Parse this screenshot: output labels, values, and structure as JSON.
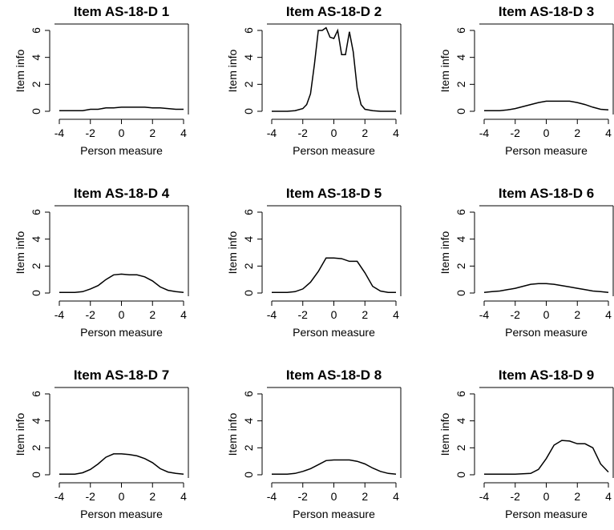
{
  "chart_data": [
    {
      "type": "line",
      "title": "Item AS-18-D 1",
      "xlabel": "Person measure",
      "ylabel": "Item info",
      "xlim": [
        -4,
        4
      ],
      "ylim": [
        0,
        6
      ],
      "xticks": [
        "-4",
        "-2",
        "0",
        "2",
        "4"
      ],
      "yticks": [
        "0",
        "2",
        "4",
        "6"
      ],
      "x": [
        -4,
        -3,
        -2.5,
        -2,
        -1.5,
        -1,
        -0.5,
        0,
        0.5,
        1,
        1.5,
        2,
        2.5,
        3,
        3.5,
        4
      ],
      "y": [
        0.05,
        0.05,
        0.05,
        0.15,
        0.15,
        0.25,
        0.25,
        0.3,
        0.3,
        0.3,
        0.3,
        0.25,
        0.25,
        0.2,
        0.15,
        0.15
      ]
    },
    {
      "type": "line",
      "title": "Item AS-18-D 2",
      "xlabel": "Person measure",
      "ylabel": "Item info",
      "xlim": [
        -4,
        4
      ],
      "ylim": [
        0,
        6
      ],
      "xticks": [
        "-4",
        "-2",
        "0",
        "2",
        "4"
      ],
      "yticks": [
        "0",
        "2",
        "4",
        "6"
      ],
      "x": [
        -4,
        -3,
        -2.5,
        -2,
        -1.75,
        -1.5,
        -1.25,
        -1,
        -0.75,
        -0.5,
        -0.25,
        0,
        0.25,
        0.5,
        0.75,
        1,
        1.25,
        1.5,
        1.75,
        2,
        2.5,
        3,
        4
      ],
      "y": [
        0,
        0,
        0.05,
        0.2,
        0.5,
        1.3,
        3.5,
        6.0,
        6.0,
        6.2,
        5.5,
        5.4,
        6.0,
        4.2,
        4.2,
        5.9,
        4.4,
        1.7,
        0.5,
        0.15,
        0.05,
        0,
        0
      ]
    },
    {
      "type": "line",
      "title": "Item AS-18-D 3",
      "xlabel": "Person measure",
      "ylabel": "Item info",
      "xlim": [
        -4,
        4
      ],
      "ylim": [
        0,
        6
      ],
      "xticks": [
        "-4",
        "-2",
        "0",
        "2",
        "4"
      ],
      "yticks": [
        "0",
        "2",
        "4",
        "6"
      ],
      "x": [
        -4,
        -3,
        -2.5,
        -2,
        -1.5,
        -1,
        -0.5,
        0,
        0.5,
        1,
        1.5,
        2,
        2.5,
        3,
        3.5,
        4
      ],
      "y": [
        0.05,
        0.05,
        0.1,
        0.2,
        0.35,
        0.5,
        0.65,
        0.75,
        0.75,
        0.75,
        0.75,
        0.65,
        0.5,
        0.3,
        0.15,
        0.1
      ]
    },
    {
      "type": "line",
      "title": "Item AS-18-D 4",
      "xlabel": "Person measure",
      "ylabel": "Item info",
      "xlim": [
        -4,
        4
      ],
      "ylim": [
        0,
        6
      ],
      "xticks": [
        "-4",
        "-2",
        "0",
        "2",
        "4"
      ],
      "yticks": [
        "0",
        "2",
        "4",
        "6"
      ],
      "x": [
        -4,
        -3,
        -2.5,
        -2,
        -1.5,
        -1,
        -0.5,
        0,
        0.5,
        1,
        1.5,
        2,
        2.5,
        3,
        3.5,
        4
      ],
      "y": [
        0.05,
        0.05,
        0.1,
        0.3,
        0.55,
        1.0,
        1.35,
        1.4,
        1.35,
        1.35,
        1.2,
        0.9,
        0.45,
        0.2,
        0.1,
        0.05
      ]
    },
    {
      "type": "line",
      "title": "Item AS-18-D 5",
      "xlabel": "Person measure",
      "ylabel": "Item info",
      "xlim": [
        -4,
        4
      ],
      "ylim": [
        0,
        6
      ],
      "xticks": [
        "-4",
        "-2",
        "0",
        "2",
        "4"
      ],
      "yticks": [
        "0",
        "2",
        "4",
        "6"
      ],
      "x": [
        -4,
        -3,
        -2.5,
        -2,
        -1.5,
        -1,
        -0.5,
        0,
        0.5,
        1,
        1.5,
        2,
        2.5,
        3,
        3.5,
        4
      ],
      "y": [
        0.05,
        0.05,
        0.1,
        0.3,
        0.8,
        1.6,
        2.6,
        2.6,
        2.55,
        2.35,
        2.35,
        1.5,
        0.5,
        0.15,
        0.05,
        0.05
      ]
    },
    {
      "type": "line",
      "title": "Item AS-18-D 6",
      "xlabel": "Person measure",
      "ylabel": "Item info",
      "xlim": [
        -4,
        4
      ],
      "ylim": [
        0,
        6
      ],
      "xticks": [
        "-4",
        "-2",
        "0",
        "2",
        "4"
      ],
      "yticks": [
        "0",
        "2",
        "4",
        "6"
      ],
      "x": [
        -4,
        -3.5,
        -3,
        -2.5,
        -2,
        -1.5,
        -1,
        -0.5,
        0,
        0.5,
        1,
        1.5,
        2,
        2.5,
        3,
        3.5,
        4
      ],
      "y": [
        0.05,
        0.1,
        0.15,
        0.25,
        0.35,
        0.5,
        0.65,
        0.7,
        0.7,
        0.65,
        0.55,
        0.45,
        0.35,
        0.25,
        0.15,
        0.1,
        0.05
      ]
    },
    {
      "type": "line",
      "title": "Item AS-18-D 7",
      "xlabel": "Person measure",
      "ylabel": "Item info",
      "xlim": [
        -4,
        4
      ],
      "ylim": [
        0,
        6
      ],
      "xticks": [
        "-4",
        "-2",
        "0",
        "2",
        "4"
      ],
      "yticks": [
        "0",
        "2",
        "4",
        "6"
      ],
      "x": [
        -4,
        -3,
        -2.5,
        -2,
        -1.5,
        -1,
        -0.5,
        0,
        0.5,
        1,
        1.5,
        2,
        2.5,
        3,
        3.5,
        4
      ],
      "y": [
        0.05,
        0.05,
        0.15,
        0.4,
        0.8,
        1.3,
        1.55,
        1.55,
        1.5,
        1.4,
        1.2,
        0.9,
        0.45,
        0.2,
        0.1,
        0.05
      ]
    },
    {
      "type": "line",
      "title": "Item AS-18-D 8",
      "xlabel": "Person measure",
      "ylabel": "Item info",
      "xlim": [
        -4,
        4
      ],
      "ylim": [
        0,
        6
      ],
      "xticks": [
        "-4",
        "-2",
        "0",
        "2",
        "4"
      ],
      "yticks": [
        "0",
        "2",
        "4",
        "6"
      ],
      "x": [
        -4,
        -3,
        -2.5,
        -2,
        -1.5,
        -1,
        -0.5,
        0,
        0.5,
        1,
        1.5,
        2,
        2.5,
        3,
        3.5,
        4
      ],
      "y": [
        0.05,
        0.05,
        0.1,
        0.25,
        0.45,
        0.75,
        1.05,
        1.1,
        1.1,
        1.1,
        1.0,
        0.8,
        0.5,
        0.25,
        0.1,
        0.05
      ]
    },
    {
      "type": "line",
      "title": "Item AS-18-D 9",
      "xlabel": "Person measure",
      "ylabel": "Item info",
      "xlim": [
        -4,
        4
      ],
      "ylim": [
        0,
        6
      ],
      "xticks": [
        "-4",
        "-2",
        "0",
        "2",
        "4"
      ],
      "yticks": [
        "0",
        "2",
        "4",
        "6"
      ],
      "x": [
        -4,
        -3,
        -2,
        -1,
        -0.5,
        0,
        0.5,
        1,
        1.5,
        2,
        2.5,
        3,
        3.5,
        4
      ],
      "y": [
        0.05,
        0.05,
        0.05,
        0.1,
        0.4,
        1.2,
        2.2,
        2.55,
        2.5,
        2.3,
        2.3,
        2.0,
        0.8,
        0.2
      ]
    }
  ]
}
